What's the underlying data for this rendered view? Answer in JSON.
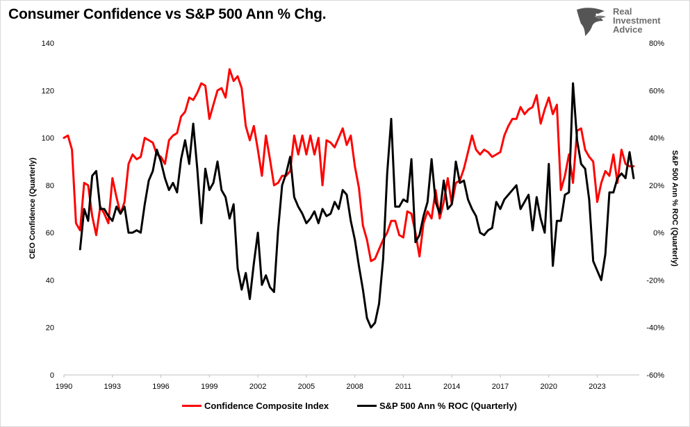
{
  "title": "Consumer Confidence vs S&P 500 Ann % Chg.",
  "logo": {
    "line1": "Real",
    "line2": "Investment",
    "line3": "Advice"
  },
  "colors": {
    "confidence": "#ff0000",
    "sp500": "#000000"
  },
  "chart_data": {
    "type": "line",
    "title": "Consumer Confidence vs S&P 500 Ann % Chg.",
    "xlabel": "",
    "ylabel": "CEO Confidence (Quarterly)",
    "y2label": "S&P 500 Ann % ROC (Quarterly)",
    "xlim": [
      1990,
      2025.6
    ],
    "ylim": [
      0,
      140
    ],
    "y2lim": [
      -60,
      80
    ],
    "x_ticks": [
      "1990",
      "1993",
      "1996",
      "1999",
      "2002",
      "2005",
      "2008",
      "2011",
      "2014",
      "2017",
      "2020",
      "2023"
    ],
    "y_ticks": [
      "0",
      "20",
      "40",
      "60",
      "80",
      "100",
      "120",
      "140"
    ],
    "y2_ticks": [
      "-60%",
      "-40%",
      "-20%",
      "0%",
      "20%",
      "40%",
      "60%",
      "80%"
    ],
    "legend": [
      "Confidence Composite Index",
      "S&P 500 Ann % ROC (Quarterly)"
    ],
    "series": [
      {
        "name": "Confidence Composite Index",
        "axis": "left",
        "x": [
          1990.0,
          1990.25,
          1990.5,
          1990.75,
          1991.0,
          1991.25,
          1991.5,
          1991.75,
          1992.0,
          1992.25,
          1992.5,
          1992.75,
          1993.0,
          1993.25,
          1993.5,
          1993.75,
          1994.0,
          1994.25,
          1994.5,
          1994.75,
          1995.0,
          1995.25,
          1995.5,
          1995.75,
          1996.0,
          1996.25,
          1996.5,
          1996.75,
          1997.0,
          1997.25,
          1997.5,
          1997.75,
          1998.0,
          1998.25,
          1998.5,
          1998.75,
          1999.0,
          1999.25,
          1999.5,
          1999.75,
          2000.0,
          2000.25,
          2000.5,
          2000.75,
          2001.0,
          2001.25,
          2001.5,
          2001.75,
          2002.0,
          2002.25,
          2002.5,
          2002.75,
          2003.0,
          2003.25,
          2003.5,
          2003.75,
          2004.0,
          2004.25,
          2004.5,
          2004.75,
          2005.0,
          2005.25,
          2005.5,
          2005.75,
          2006.0,
          2006.25,
          2006.5,
          2006.75,
          2007.0,
          2007.25,
          2007.5,
          2007.75,
          2008.0,
          2008.25,
          2008.5,
          2008.75,
          2009.0,
          2009.25,
          2009.5,
          2009.75,
          2010.0,
          2010.25,
          2010.5,
          2010.75,
          2011.0,
          2011.25,
          2011.5,
          2011.75,
          2012.0,
          2012.25,
          2012.5,
          2012.75,
          2013.0,
          2013.25,
          2013.5,
          2013.75,
          2014.0,
          2014.25,
          2014.5,
          2014.75,
          2015.0,
          2015.25,
          2015.5,
          2015.75,
          2016.0,
          2016.25,
          2016.5,
          2016.75,
          2017.0,
          2017.25,
          2017.5,
          2017.75,
          2018.0,
          2018.25,
          2018.5,
          2018.75,
          2019.0,
          2019.25,
          2019.5,
          2019.75,
          2020.0,
          2020.25,
          2020.5,
          2020.75,
          2021.0,
          2021.25,
          2021.5,
          2021.75,
          2022.0,
          2022.25,
          2022.5,
          2022.75,
          2023.0,
          2023.25,
          2023.5,
          2023.75,
          2024.0,
          2024.25,
          2024.5,
          2024.75,
          2025.0,
          2025.25
        ],
        "values": [
          100,
          101,
          95,
          64,
          61,
          81,
          80,
          67,
          59,
          71,
          68,
          64,
          83,
          75,
          68,
          73,
          89,
          93,
          91,
          92,
          100,
          99,
          98,
          93,
          92,
          89,
          99,
          101,
          102,
          109,
          111,
          117,
          116,
          119,
          123,
          122,
          108,
          114,
          120,
          121,
          117,
          129,
          124,
          126,
          121,
          105,
          99,
          105,
          95,
          84,
          101,
          91,
          80,
          81,
          84,
          84,
          86,
          101,
          93,
          101,
          93,
          101,
          93,
          100,
          80,
          99,
          98,
          96,
          100,
          104,
          97,
          101,
          88,
          79,
          63,
          57,
          48,
          49,
          53,
          57,
          60,
          65,
          65,
          59,
          58,
          69,
          68,
          60,
          50,
          64,
          69,
          66,
          78,
          66,
          73,
          83,
          72,
          81,
          82,
          87,
          94,
          101,
          95,
          93,
          95,
          94,
          92,
          93,
          94,
          101,
          105,
          108,
          108,
          113,
          110,
          112,
          113,
          118,
          106,
          112,
          117,
          110,
          114,
          78,
          84,
          93,
          81,
          103,
          104,
          95,
          92,
          90,
          73,
          81,
          86,
          84,
          93,
          81,
          95,
          89,
          88,
          88
        ]
      },
      {
        "name": "S&P 500 Ann % ROC (Quarterly)",
        "axis": "right",
        "x": [
          1991.0,
          1991.25,
          1991.5,
          1991.75,
          1992.0,
          1992.25,
          1992.5,
          1992.75,
          1993.0,
          1993.25,
          1993.5,
          1993.75,
          1994.0,
          1994.25,
          1994.5,
          1994.75,
          1995.0,
          1995.25,
          1995.5,
          1995.75,
          1996.0,
          1996.25,
          1996.5,
          1996.75,
          1997.0,
          1997.25,
          1997.5,
          1997.75,
          1998.0,
          1998.25,
          1998.5,
          1998.75,
          1999.0,
          1999.25,
          1999.5,
          1999.75,
          2000.0,
          2000.25,
          2000.5,
          2000.75,
          2001.0,
          2001.25,
          2001.5,
          2001.75,
          2002.0,
          2002.25,
          2002.5,
          2002.75,
          2003.0,
          2003.25,
          2003.5,
          2003.75,
          2004.0,
          2004.25,
          2004.5,
          2004.75,
          2005.0,
          2005.25,
          2005.5,
          2005.75,
          2006.0,
          2006.25,
          2006.5,
          2006.75,
          2007.0,
          2007.25,
          2007.5,
          2007.75,
          2008.0,
          2008.25,
          2008.5,
          2008.75,
          2009.0,
          2009.25,
          2009.5,
          2009.75,
          2010.0,
          2010.25,
          2010.5,
          2010.75,
          2011.0,
          2011.25,
          2011.5,
          2011.75,
          2012.0,
          2012.25,
          2012.5,
          2012.75,
          2013.0,
          2013.25,
          2013.5,
          2013.75,
          2014.0,
          2014.25,
          2014.5,
          2014.75,
          2015.0,
          2015.25,
          2015.5,
          2015.75,
          2016.0,
          2016.25,
          2016.5,
          2016.75,
          2017.0,
          2017.25,
          2017.5,
          2017.75,
          2018.0,
          2018.25,
          2018.5,
          2018.75,
          2019.0,
          2019.25,
          2019.5,
          2019.75,
          2020.0,
          2020.25,
          2020.5,
          2020.75,
          2021.0,
          2021.25,
          2021.5,
          2021.75,
          2022.0,
          2022.25,
          2022.5,
          2022.75,
          2023.0,
          2023.25,
          2023.5,
          2023.75,
          2024.0,
          2024.25,
          2024.5,
          2024.75,
          2025.0,
          2025.25
        ],
        "values": [
          -7,
          10,
          5,
          24,
          26,
          10,
          10,
          7,
          5,
          11,
          8,
          11,
          0,
          0,
          1,
          0,
          12,
          22,
          26,
          35,
          30,
          23,
          18,
          21,
          17,
          31,
          39,
          29,
          46,
          27,
          4,
          27,
          18,
          21,
          30,
          18,
          15,
          6,
          12,
          -15,
          -24,
          -17,
          -28,
          -13,
          0,
          -22,
          -18,
          -23,
          -25,
          1,
          20,
          25,
          32,
          15,
          11,
          8,
          4,
          6,
          9,
          4,
          10,
          7,
          8,
          13,
          10,
          18,
          16,
          5,
          -3,
          -14,
          -24,
          -36,
          -40,
          -38,
          -30,
          -11,
          25,
          48,
          11,
          11,
          14,
          13,
          31,
          -4,
          -1,
          7,
          13,
          31,
          13,
          8,
          22,
          10,
          12,
          30,
          21,
          22,
          14,
          10,
          7,
          0,
          -1,
          1,
          2,
          13,
          10,
          14,
          16,
          18,
          20,
          10,
          13,
          16,
          1,
          15,
          6,
          0,
          29,
          -14,
          5,
          5,
          16,
          17,
          63,
          39,
          29,
          27,
          14,
          -12,
          -16,
          -20,
          -9,
          17,
          17,
          23,
          25,
          23,
          34,
          23
        ]
      }
    ]
  },
  "legend": {
    "series1": "Confidence Composite Index",
    "series2": "S&P 500 Ann % ROC (Quarterly)"
  }
}
